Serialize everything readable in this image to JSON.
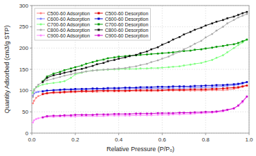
{
  "chart_data": {
    "type": "line",
    "xlabel": "Relative Pressure (P/P₀)",
    "ylabel": "Quantity Adsorbed (cm3/g STP)",
    "xlim": [
      0,
      1.0
    ],
    "ylim": [
      0,
      300
    ],
    "xticks": [
      {
        "value": 0.0,
        "label": "0.0"
      },
      0.2,
      0.4,
      0.6,
      0.8,
      {
        "value": 1.0,
        "label": "1.0"
      }
    ],
    "yticks": [
      0,
      50,
      100,
      150,
      200,
      250,
      300
    ],
    "grid": true,
    "legend": "upper left",
    "series": [
      {
        "name": "C500-60 Adsorption",
        "color": "#FF8080",
        "marker": "circle",
        "x": [
          0.005,
          0.01,
          0.02,
          0.03,
          0.05,
          0.07,
          0.1,
          0.13,
          0.15,
          0.18,
          0.2,
          0.23,
          0.25,
          0.28,
          0.3,
          0.33,
          0.35,
          0.38,
          0.4,
          0.43,
          0.45,
          0.48,
          0.5,
          0.53,
          0.55,
          0.58,
          0.6,
          0.63,
          0.65,
          0.68,
          0.7,
          0.73,
          0.75,
          0.78,
          0.8,
          0.83,
          0.85,
          0.88,
          0.9,
          0.93,
          0.95,
          0.97,
          0.99
        ],
        "values": [
          70,
          76,
          83,
          87,
          91,
          93,
          94,
          95,
          95,
          96,
          96,
          97,
          97,
          97,
          97,
          98,
          98,
          98,
          98,
          98,
          99,
          99,
          99,
          99,
          99,
          99,
          100,
          100,
          100,
          100,
          100,
          100,
          100,
          100,
          100,
          101,
          101,
          101,
          102,
          104,
          106,
          109,
          112
        ]
      },
      {
        "name": "C500-60 Desorption",
        "color": "#DD0000",
        "marker": "square",
        "x": [
          0.99,
          0.97,
          0.95,
          0.93,
          0.9,
          0.88,
          0.85,
          0.83,
          0.8,
          0.78,
          0.75,
          0.73,
          0.7,
          0.68,
          0.65,
          0.63,
          0.6,
          0.58,
          0.55,
          0.53,
          0.5,
          0.48,
          0.45,
          0.43,
          0.4,
          0.38,
          0.35,
          0.33,
          0.3,
          0.28,
          0.25,
          0.23,
          0.2,
          0.18,
          0.15,
          0.13,
          0.1,
          0.07,
          0.05
        ],
        "values": [
          112,
          110,
          108,
          107,
          106,
          105,
          104,
          104,
          103,
          103,
          103,
          103,
          102,
          102,
          102,
          102,
          101,
          101,
          101,
          101,
          101,
          101,
          100,
          100,
          100,
          100,
          100,
          100,
          100,
          99,
          99,
          99,
          98,
          98,
          97,
          96,
          96,
          94,
          92
        ]
      },
      {
        "name": "C600-60 Adsorption",
        "color": "#8080FF",
        "marker": "circle",
        "x": [
          0.005,
          0.01,
          0.02,
          0.03,
          0.05,
          0.07,
          0.1,
          0.13,
          0.15,
          0.18,
          0.2,
          0.23,
          0.25,
          0.28,
          0.3,
          0.33,
          0.35,
          0.38,
          0.4,
          0.43,
          0.45,
          0.48,
          0.5,
          0.53,
          0.55,
          0.58,
          0.6,
          0.63,
          0.65,
          0.68,
          0.7,
          0.73,
          0.75,
          0.78,
          0.8,
          0.83,
          0.85,
          0.88,
          0.9,
          0.93,
          0.95,
          0.97,
          0.99
        ],
        "values": [
          88,
          93,
          96,
          97,
          99,
          100,
          101,
          101,
          102,
          102,
          102,
          103,
          103,
          103,
          103,
          103,
          104,
          104,
          104,
          104,
          104,
          105,
          105,
          105,
          105,
          105,
          105,
          106,
          106,
          106,
          106,
          107,
          107,
          107,
          108,
          108,
          109,
          110,
          111,
          112,
          114,
          116,
          120
        ]
      },
      {
        "name": "C600-60 Desorption",
        "color": "#0000CC",
        "marker": "square",
        "x": [
          0.99,
          0.97,
          0.95,
          0.93,
          0.9,
          0.88,
          0.85,
          0.83,
          0.8,
          0.78,
          0.75,
          0.73,
          0.7,
          0.68,
          0.65,
          0.63,
          0.6,
          0.58,
          0.55,
          0.53,
          0.5,
          0.48,
          0.45,
          0.43,
          0.4,
          0.38,
          0.35,
          0.33,
          0.3,
          0.28,
          0.25,
          0.23,
          0.2,
          0.18,
          0.15,
          0.13,
          0.1,
          0.07,
          0.05
        ],
        "values": [
          120,
          118,
          116,
          115,
          114,
          113,
          113,
          112,
          112,
          111,
          111,
          110,
          110,
          110,
          110,
          109,
          109,
          109,
          108,
          108,
          108,
          107,
          107,
          107,
          106,
          106,
          106,
          105,
          105,
          105,
          104,
          104,
          104,
          103,
          103,
          102,
          101,
          100,
          98
        ]
      },
      {
        "name": "C700-60 Adsorption",
        "color": "#80FF80",
        "marker": "circle",
        "x": [
          0.005,
          0.01,
          0.02,
          0.03,
          0.05,
          0.07,
          0.1,
          0.13,
          0.15,
          0.18,
          0.2,
          0.23,
          0.25,
          0.28,
          0.3,
          0.33,
          0.35,
          0.38,
          0.4,
          0.43,
          0.45,
          0.48,
          0.5,
          0.53,
          0.55,
          0.58,
          0.6,
          0.63,
          0.65,
          0.68,
          0.7,
          0.73,
          0.75,
          0.78,
          0.8,
          0.83,
          0.85,
          0.88,
          0.9,
          0.93,
          0.95,
          0.97,
          0.99
        ],
        "values": [
          95,
          103,
          108,
          110,
          114,
          116,
          118,
          120,
          122,
          130,
          138,
          142,
          145,
          147,
          148,
          149,
          149,
          150,
          150,
          151,
          151,
          151,
          152,
          152,
          153,
          153,
          154,
          155,
          156,
          157,
          159,
          161,
          163,
          165,
          168,
          172,
          177,
          183,
          190,
          200,
          207,
          213,
          220
        ]
      },
      {
        "name": "C700-60 Desorption",
        "color": "#009900",
        "marker": "square",
        "x": [
          0.99,
          0.97,
          0.95,
          0.93,
          0.9,
          0.88,
          0.85,
          0.83,
          0.8,
          0.78,
          0.75,
          0.73,
          0.7,
          0.68,
          0.65,
          0.63,
          0.6,
          0.58,
          0.55,
          0.53,
          0.5,
          0.48,
          0.45,
          0.43,
          0.4,
          0.38,
          0.35,
          0.33,
          0.3,
          0.28,
          0.25,
          0.23,
          0.2,
          0.18,
          0.15,
          0.13,
          0.1,
          0.07,
          0.05
        ],
        "values": [
          220,
          216,
          212,
          209,
          207,
          205,
          203,
          201,
          199,
          197,
          196,
          194,
          193,
          192,
          190,
          189,
          188,
          187,
          186,
          185,
          184,
          183,
          182,
          181,
          180,
          178,
          176,
          173,
          170,
          167,
          163,
          159,
          155,
          152,
          148,
          144,
          140,
          133,
          122
        ]
      },
      {
        "name": "C800-60 Adsorption",
        "color": "#AAAAAA",
        "marker": "circle",
        "x": [
          0.005,
          0.01,
          0.02,
          0.03,
          0.05,
          0.07,
          0.1,
          0.13,
          0.15,
          0.18,
          0.2,
          0.23,
          0.25,
          0.28,
          0.3,
          0.33,
          0.35,
          0.38,
          0.4,
          0.43,
          0.45,
          0.48,
          0.5,
          0.53,
          0.55,
          0.58,
          0.6,
          0.63,
          0.65,
          0.68,
          0.7,
          0.73,
          0.75,
          0.78,
          0.8,
          0.83,
          0.85,
          0.88,
          0.9,
          0.93,
          0.95,
          0.97,
          0.99
        ],
        "values": [
          85,
          100,
          108,
          114,
          120,
          124,
          128,
          132,
          135,
          138,
          141,
          143,
          145,
          147,
          148,
          149,
          150,
          151,
          152,
          153,
          155,
          157,
          160,
          163,
          167,
          171,
          175,
          180,
          185,
          191,
          197,
          204,
          210,
          217,
          225,
          233,
          241,
          250,
          258,
          266,
          272,
          276,
          280
        ]
      },
      {
        "name": "C800-60 Desorption",
        "color": "#111111",
        "marker": "square",
        "x": [
          0.99,
          0.97,
          0.95,
          0.93,
          0.9,
          0.88,
          0.85,
          0.83,
          0.8,
          0.78,
          0.75,
          0.73,
          0.7,
          0.68,
          0.65,
          0.63,
          0.6,
          0.58,
          0.55,
          0.53,
          0.5,
          0.48,
          0.45,
          0.43,
          0.4,
          0.38,
          0.35,
          0.33,
          0.3,
          0.28,
          0.25,
          0.23,
          0.2,
          0.18,
          0.15,
          0.13,
          0.1,
          0.07,
          0.05
        ],
        "values": [
          285,
          282,
          278,
          274,
          270,
          266,
          262,
          258,
          253,
          248,
          243,
          238,
          232,
          226,
          220,
          214,
          208,
          202,
          197,
          192,
          188,
          184,
          181,
          178,
          175,
          172,
          169,
          165,
          162,
          158,
          154,
          151,
          148,
          145,
          142,
          139,
          136,
          130,
          120
        ]
      },
      {
        "name": "C900-60 Adsorption",
        "color": "#FF88FF",
        "marker": "circle",
        "x": [
          0.005,
          0.01,
          0.02,
          0.03,
          0.05,
          0.07,
          0.1,
          0.13,
          0.15,
          0.18,
          0.2,
          0.23,
          0.25,
          0.28,
          0.3,
          0.33,
          0.35,
          0.38,
          0.4,
          0.43,
          0.45,
          0.48,
          0.5,
          0.53,
          0.55,
          0.58,
          0.6,
          0.63,
          0.65,
          0.68,
          0.7,
          0.73,
          0.75,
          0.78,
          0.8,
          0.83,
          0.85,
          0.88,
          0.9,
          0.93,
          0.95,
          0.97,
          0.99
        ],
        "values": [
          25,
          30,
          33,
          35,
          37,
          38,
          38,
          39,
          39,
          39,
          39,
          40,
          40,
          40,
          40,
          40,
          41,
          41,
          41,
          41,
          41,
          42,
          42,
          42,
          42,
          43,
          43,
          43,
          44,
          44,
          45,
          45,
          46,
          47,
          47,
          48,
          49,
          51,
          54,
          59,
          64,
          72,
          86
        ]
      },
      {
        "name": "C900-60 Desorption",
        "color": "#CC00CC",
        "marker": "square",
        "x": [
          0.99,
          0.97,
          0.95,
          0.93,
          0.9,
          0.88,
          0.85,
          0.83,
          0.8,
          0.78,
          0.75,
          0.73,
          0.7,
          0.68,
          0.65,
          0.63,
          0.6,
          0.58,
          0.55,
          0.53,
          0.5,
          0.48,
          0.45,
          0.43,
          0.4,
          0.38,
          0.35,
          0.33,
          0.3,
          0.28,
          0.25,
          0.23,
          0.2,
          0.18,
          0.15,
          0.13,
          0.1,
          0.07,
          0.05
        ],
        "values": [
          86,
          75,
          65,
          58,
          55,
          53,
          51,
          50,
          50,
          49,
          49,
          48,
          48,
          48,
          47,
          47,
          47,
          47,
          46,
          46,
          46,
          46,
          45,
          45,
          45,
          45,
          44,
          44,
          44,
          43,
          43,
          43,
          43,
          42,
          42,
          41,
          41,
          40,
          37
        ]
      }
    ]
  }
}
